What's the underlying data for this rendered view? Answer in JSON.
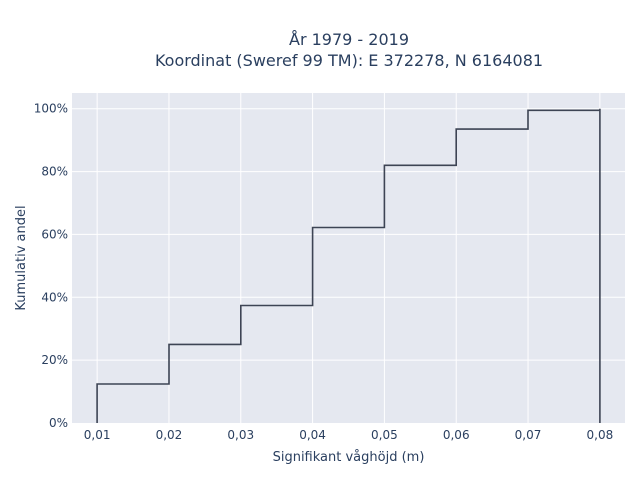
{
  "chart_data": {
    "type": "line",
    "line_shape": "step",
    "title_lines": [
      "År 1979 - 2019",
      "Koordinat (Sweref 99 TM): E 372278, N 6164081"
    ],
    "xlabel": "Signifikant våghöjd (m)",
    "ylabel": "Kumulativ andel",
    "xlim": [
      0.0065,
      0.0835
    ],
    "ylim": [
      0,
      1.05
    ],
    "x_ticks": [
      0.01,
      0.02,
      0.03,
      0.04,
      0.05,
      0.06,
      0.07,
      0.08
    ],
    "x_tick_labels": [
      "0,01",
      "0,02",
      "0,03",
      "0,04",
      "0,05",
      "0,06",
      "0,07",
      "0,08"
    ],
    "y_ticks": [
      0,
      0.2,
      0.4,
      0.6,
      0.8,
      1.0
    ],
    "y_tick_labels": [
      "0%",
      "20%",
      "40%",
      "60%",
      "80%",
      "100%"
    ],
    "grid": true,
    "series": [
      {
        "x": [
          0.01,
          0.01,
          0.02,
          0.02,
          0.03,
          0.03,
          0.04,
          0.04,
          0.05,
          0.05,
          0.06,
          0.06,
          0.07,
          0.07,
          0.08,
          0.08,
          0.08
        ],
        "y": [
          0,
          0.124,
          0.124,
          0.25,
          0.25,
          0.374,
          0.374,
          0.622,
          0.622,
          0.82,
          0.82,
          0.935,
          0.935,
          0.995,
          0.995,
          1.0,
          0
        ],
        "color": "#3d4454"
      }
    ],
    "plot_bg": "#e5e8f0",
    "grid_color": "#ffffff"
  }
}
